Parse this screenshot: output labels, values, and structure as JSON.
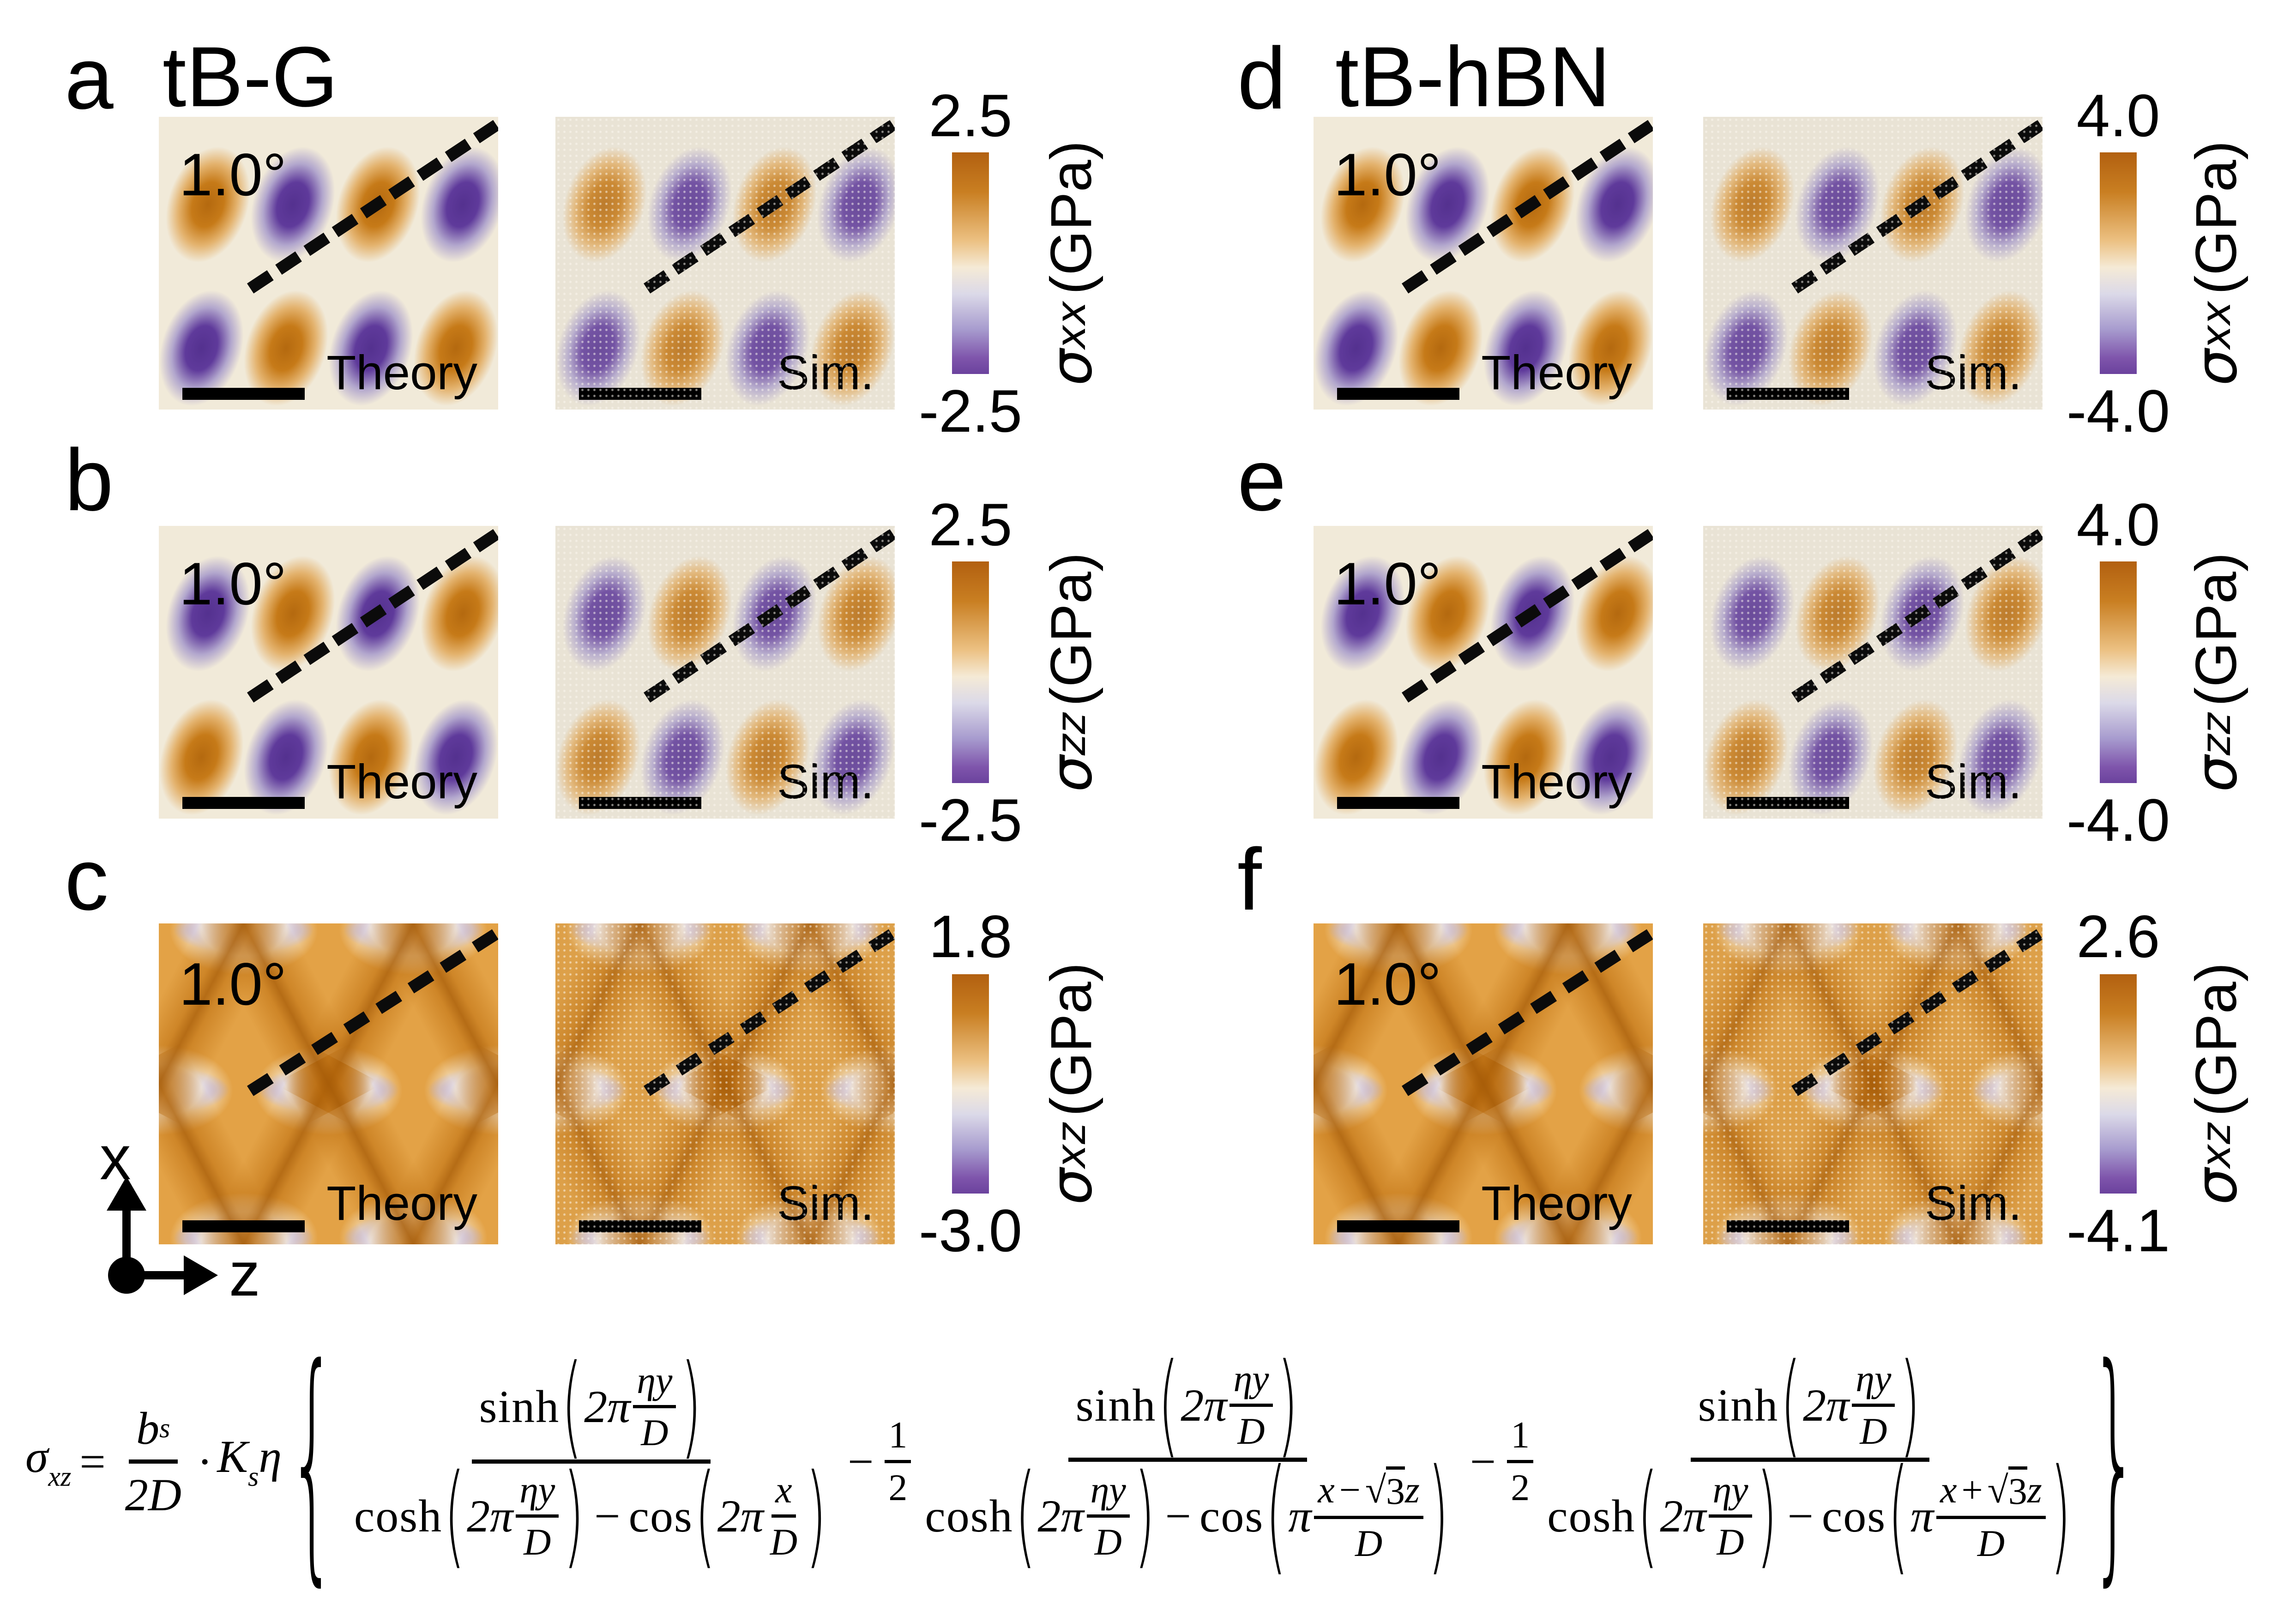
{
  "panels": [
    {
      "id": "a",
      "label": "a",
      "title": "tB-G",
      "angle": "1.0°",
      "theory_caption": "Theory",
      "sim_caption": "Sim.",
      "colorbar": {
        "max": "2.5",
        "min": "-2.5",
        "sigma": "σ",
        "subscript": "xx",
        "unit": "(GPa)"
      }
    },
    {
      "id": "b",
      "label": "b",
      "angle": "1.0°",
      "theory_caption": "Theory",
      "sim_caption": "Sim.",
      "colorbar": {
        "max": "2.5",
        "min": "-2.5",
        "sigma": "σ",
        "subscript": "zz",
        "unit": "(GPa)"
      }
    },
    {
      "id": "c",
      "label": "c",
      "angle": "1.0°",
      "theory_caption": "Theory",
      "sim_caption": "Sim.",
      "colorbar": {
        "max": "1.8",
        "min": "-3.0",
        "sigma": "σ",
        "subscript": "xz",
        "unit": "(GPa)"
      }
    },
    {
      "id": "d",
      "label": "d",
      "title": "tB-hBN",
      "angle": "1.0°",
      "theory_caption": "Theory",
      "sim_caption": "Sim.",
      "colorbar": {
        "max": "4.0",
        "min": "-4.0",
        "sigma": "σ",
        "subscript": "xx",
        "unit": "(GPa)"
      }
    },
    {
      "id": "e",
      "label": "e",
      "angle": "1.0°",
      "theory_caption": "Theory",
      "sim_caption": "Sim.",
      "colorbar": {
        "max": "4.0",
        "min": "-4.0",
        "sigma": "σ",
        "subscript": "zz",
        "unit": "(GPa)"
      }
    },
    {
      "id": "f",
      "label": "f",
      "angle": "1.0°",
      "theory_caption": "Theory",
      "sim_caption": "Sim.",
      "colorbar": {
        "max": "2.6",
        "min": "-4.1",
        "sigma": "σ",
        "subscript": "xz",
        "unit": "(GPa)"
      }
    }
  ],
  "axis": {
    "x": "x",
    "z": "z"
  },
  "formula": {
    "sigma": "σ",
    "sigma_sub": "xz",
    "equals": "=",
    "b": "b",
    "b_sub": "s",
    "two_d": "2D",
    "cdot": "·",
    "K": "K",
    "K_sub": "s",
    "eta": "η",
    "lbrace": "{",
    "rbrace": "}",
    "lparen": "(",
    "rparen": ")",
    "sinh": "sinh",
    "cosh": "cosh",
    "cos": "cos",
    "two_pi": "2π",
    "pi": "π",
    "eta_y": "ηy",
    "D": "D",
    "x": "x",
    "z": "z",
    "minus": "−",
    "plus": "+",
    "one": "1",
    "two": "2",
    "sqrt": "√",
    "three": "3"
  },
  "colors": {
    "colormap_orange": "#b4690f",
    "colormap_purple": "#54318f",
    "colormap_mid_cream": "#f5ead6",
    "theory_map_background": "#f1ead9",
    "sim_map_background": "#e9e3d5"
  }
}
